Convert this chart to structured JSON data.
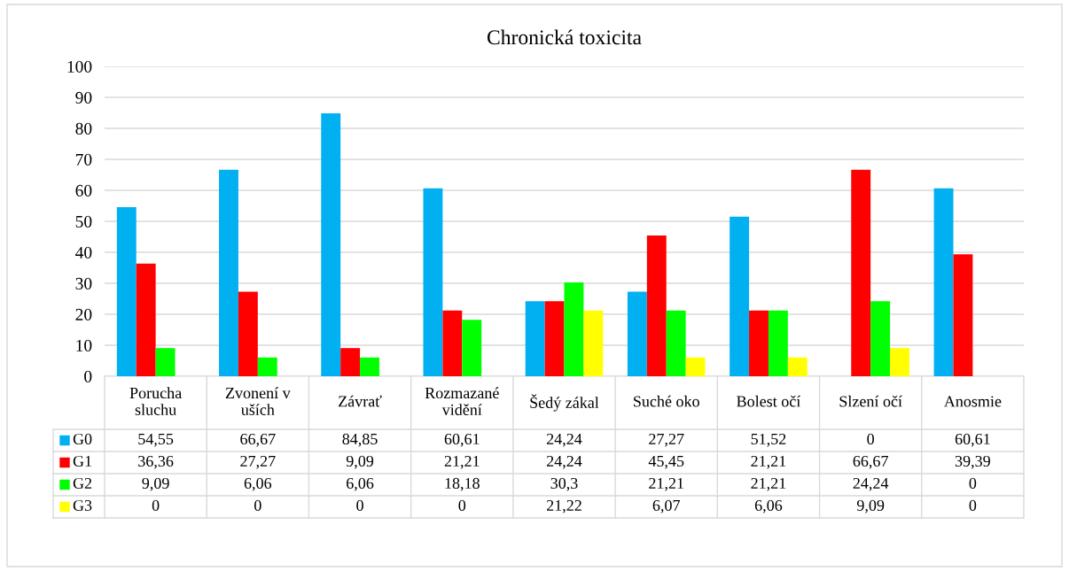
{
  "chart_data": {
    "type": "bar",
    "title": "Chronická toxicita",
    "categories": [
      "Porucha\nsluchu",
      "Zvonení v\nuších",
      "Závrať",
      "Rozmazané\nvidění",
      "Šedý zákal",
      "Suché oko",
      "Bolest očí",
      "Slzení očí",
      "Anosmie"
    ],
    "series": [
      {
        "name": "G0",
        "color": "#00b0f0",
        "values": [
          54.55,
          66.67,
          84.85,
          60.61,
          24.24,
          27.27,
          51.52,
          0,
          60.61
        ],
        "value_labels": [
          "54,55",
          "66,67",
          "84,85",
          "60,61",
          "24,24",
          "27,27",
          "51,52",
          "0",
          "60,61"
        ]
      },
      {
        "name": "G1",
        "color": "#ff0000",
        "values": [
          36.36,
          27.27,
          9.09,
          21.21,
          24.24,
          45.45,
          21.21,
          66.67,
          39.39
        ],
        "value_labels": [
          "36,36",
          "27,27",
          "9,09",
          "21,21",
          "24,24",
          "45,45",
          "21,21",
          "66,67",
          "39,39"
        ]
      },
      {
        "name": "G2",
        "color": "#00ff00",
        "values": [
          9.09,
          6.06,
          6.06,
          18.18,
          30.3,
          21.21,
          21.21,
          24.24,
          0
        ],
        "value_labels": [
          "9,09",
          "6,06",
          "6,06",
          "18,18",
          "30,3",
          "21,21",
          "21,21",
          "24,24",
          "0"
        ]
      },
      {
        "name": "G3",
        "color": "#ffff00",
        "values": [
          0,
          0,
          0,
          0,
          21.22,
          6.07,
          6.06,
          9.09,
          0
        ],
        "value_labels": [
          "0",
          "0",
          "0",
          "0",
          "21,22",
          "6,07",
          "6,06",
          "9,09",
          "0"
        ]
      }
    ],
    "ylim": [
      0,
      100
    ],
    "yticks": [
      0,
      10,
      20,
      30,
      40,
      50,
      60,
      70,
      80,
      90,
      100
    ],
    "grid": "y",
    "legend": "bottom"
  }
}
